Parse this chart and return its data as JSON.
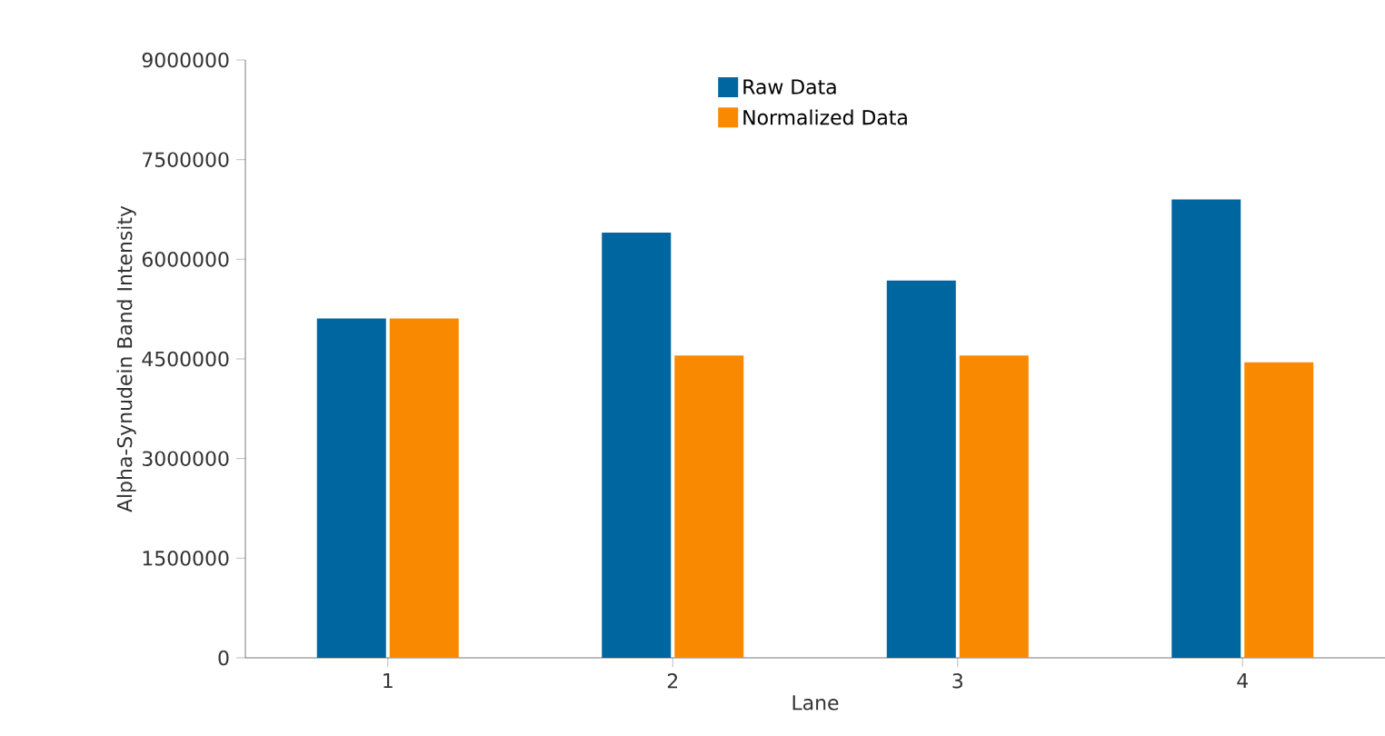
{
  "chart_data": {
    "type": "bar",
    "xlabel": "Lane",
    "ylabel": "Alpha-Synudein Band Intensity",
    "categories": [
      "1",
      "2",
      "3",
      "4"
    ],
    "series": [
      {
        "name": "Raw Data",
        "color": "#0066a0",
        "values": [
          5110000,
          6400000,
          5680000,
          6900000
        ]
      },
      {
        "name": "Normalized Data",
        "color": "#f98a00",
        "values": [
          5110000,
          4550000,
          4550000,
          4450000
        ]
      }
    ],
    "ylim": [
      0,
      9000000
    ],
    "yticks": [
      0,
      1500000,
      3000000,
      4500000,
      6000000,
      7500000,
      9000000
    ],
    "grid": false,
    "legend": "top"
  }
}
